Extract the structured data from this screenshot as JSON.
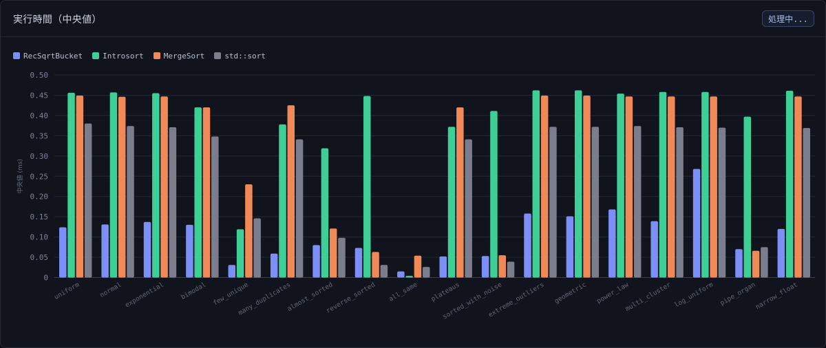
{
  "header": {
    "title": "実行時間（中央値）",
    "status_button": "処理中..."
  },
  "chart_data": {
    "type": "bar",
    "ylabel": "中央値 (ms)",
    "ylim": [
      0,
      0.5
    ],
    "yticks": [
      "0",
      "0.05",
      "0.10",
      "0.15",
      "0.20",
      "0.25",
      "0.30",
      "0.35",
      "0.40",
      "0.45",
      "0.50"
    ],
    "grid": true,
    "legend": "top-left",
    "categories": [
      "uniform",
      "normal",
      "exponential",
      "bimodal",
      "few_unique",
      "many_duplicates",
      "almost_sorted",
      "reverse_sorted",
      "all_same",
      "plateaus",
      "sorted_with_noise",
      "extreme_outliers",
      "geometric",
      "power_law",
      "multi_cluster",
      "log_uniform",
      "pipe_organ",
      "narrow_float"
    ],
    "series": [
      {
        "name": "RecSqrtBucket",
        "color": "#7b8ff7",
        "values": [
          0.124,
          0.131,
          0.137,
          0.13,
          0.031,
          0.059,
          0.08,
          0.073,
          0.015,
          0.052,
          0.053,
          0.158,
          0.151,
          0.168,
          0.139,
          0.268,
          0.07,
          0.12
        ]
      },
      {
        "name": "Introsort",
        "color": "#3ecf96",
        "values": [
          0.456,
          0.457,
          0.455,
          0.42,
          0.119,
          0.378,
          0.319,
          0.448,
          0.004,
          0.372,
          0.411,
          0.462,
          0.462,
          0.454,
          0.458,
          0.458,
          0.397,
          0.461
        ]
      },
      {
        "name": "MergeSort",
        "color": "#ef8a58",
        "values": [
          0.449,
          0.446,
          0.447,
          0.42,
          0.23,
          0.425,
          0.121,
          0.063,
          0.054,
          0.42,
          0.055,
          0.449,
          0.449,
          0.447,
          0.447,
          0.447,
          0.066,
          0.447
        ]
      },
      {
        "name": "std::sort",
        "color": "#7a7e8c",
        "values": [
          0.38,
          0.374,
          0.371,
          0.348,
          0.146,
          0.341,
          0.098,
          0.031,
          0.026,
          0.341,
          0.039,
          0.372,
          0.372,
          0.374,
          0.371,
          0.37,
          0.075,
          0.369
        ]
      }
    ]
  }
}
